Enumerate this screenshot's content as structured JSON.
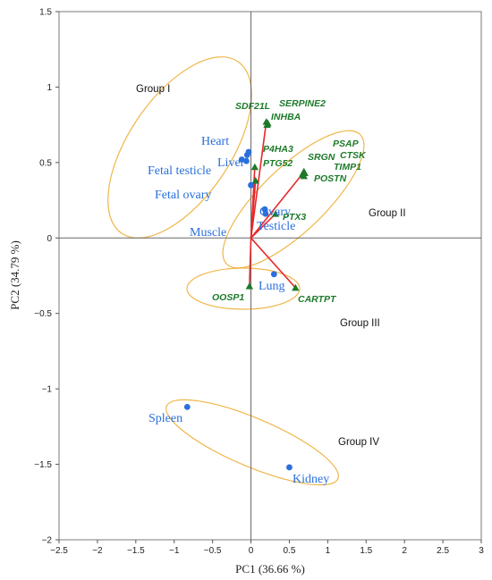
{
  "chart_data": {
    "type": "scatter",
    "title": "",
    "xlabel": "PC1 (36.66 %)",
    "ylabel": "PC2 (34.79 %)",
    "xlim": [
      -2.5,
      3
    ],
    "ylim": [
      -2,
      1.5
    ],
    "x_ticks": [
      -2.5,
      -2,
      -1.5,
      -1,
      -0.5,
      0,
      0.5,
      1,
      1.5,
      2,
      2.5,
      3
    ],
    "x_tick_labels": [
      "−2.5",
      "−2",
      "−1.5",
      "−1",
      "−0.5",
      "0",
      "0.5",
      "1",
      "1.5",
      "2",
      "2.5",
      "3"
    ],
    "y_ticks": [
      -2,
      -1.5,
      -1,
      -0.5,
      0,
      0.5,
      1,
      1.5
    ],
    "y_tick_labels": [
      "−2",
      "−1.5",
      "−1",
      "−0.5",
      "0",
      "0.5",
      "1",
      "1.5"
    ],
    "grid": false,
    "colors": {
      "tissue": "#2a6fdb",
      "gene": "#1d7a2a",
      "vector": "#e8282b",
      "ellipse": "#f0b64a",
      "axis": "#666666"
    },
    "tissues": [
      {
        "name": "Heart",
        "x": -0.03,
        "y": 0.57
      },
      {
        "name": "Liver",
        "x": -0.05,
        "y": 0.55
      },
      {
        "name": "Fetal testicle",
        "x": -0.12,
        "y": 0.52
      },
      {
        "name": "Fetal ovary",
        "x": -0.06,
        "y": 0.51
      },
      {
        "name": "Muscle",
        "x": 0.0,
        "y": 0.35
      },
      {
        "name": "Ovary",
        "x": 0.18,
        "y": 0.19
      },
      {
        "name": "Testicle",
        "x": 0.19,
        "y": 0.16
      },
      {
        "name": "Lung",
        "x": 0.3,
        "y": -0.24
      },
      {
        "name": "Spleen",
        "x": -0.83,
        "y": -1.12
      },
      {
        "name": "Kidney",
        "x": 0.5,
        "y": -1.52
      }
    ],
    "genes": [
      {
        "name": "SDF21L",
        "x": 0.2,
        "y": 0.77
      },
      {
        "name": "INHBA",
        "x": 0.21,
        "y": 0.75
      },
      {
        "name": "SERPINE2",
        "x": 0.22,
        "y": 0.76
      },
      {
        "name": "P4HA3",
        "x": 0.05,
        "y": 0.47
      },
      {
        "name": "PTG52",
        "x": 0.06,
        "y": 0.38
      },
      {
        "name": "PSAP",
        "x": 0.68,
        "y": 0.43
      },
      {
        "name": "CTSK",
        "x": 0.69,
        "y": 0.44
      },
      {
        "name": "SRGN",
        "x": 0.67,
        "y": 0.42
      },
      {
        "name": "TIMP1",
        "x": 0.7,
        "y": 0.43
      },
      {
        "name": "POSTN",
        "x": 0.69,
        "y": 0.41
      },
      {
        "name": "PTX3",
        "x": 0.32,
        "y": 0.16
      },
      {
        "name": "OOSP1",
        "x": -0.02,
        "y": -0.32
      },
      {
        "name": "CARTPT",
        "x": 0.58,
        "y": -0.33
      }
    ],
    "groups": [
      {
        "name": "Group I"
      },
      {
        "name": "Group II"
      },
      {
        "name": "Group III"
      },
      {
        "name": "Group IV"
      }
    ]
  }
}
